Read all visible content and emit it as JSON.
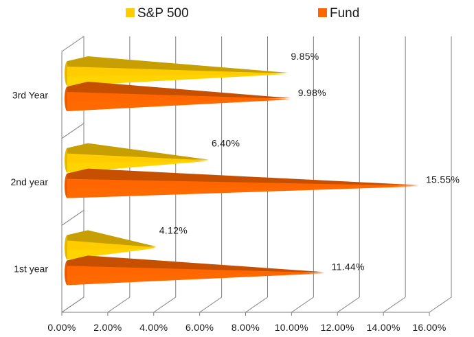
{
  "chart_data": {
    "type": "bar",
    "orientation": "horizontal",
    "style": "3d-cone",
    "categories": [
      "1st year",
      "2nd year",
      "3rd Year"
    ],
    "series": [
      {
        "name": "S&P 500",
        "color": "#FFCC00",
        "values": [
          4.12,
          6.4,
          9.85
        ],
        "labels": [
          "4.12%",
          "6.40%",
          "9.85%"
        ]
      },
      {
        "name": "Fund",
        "color": "#FF6600",
        "values": [
          11.44,
          15.55,
          9.98
        ],
        "labels": [
          "11.44%",
          "15.55%",
          "9.98%"
        ]
      }
    ],
    "xlim": [
      0,
      16
    ],
    "xticks": [
      0,
      2,
      4,
      6,
      8,
      10,
      12,
      14,
      16
    ],
    "xtick_labels": [
      "0.00%",
      "2.00%",
      "4.00%",
      "6.00%",
      "8.00%",
      "10.00%",
      "12.00%",
      "14.00%",
      "16.00%"
    ],
    "grid": true,
    "legend": "top",
    "title": "",
    "xlabel": "",
    "ylabel": ""
  }
}
